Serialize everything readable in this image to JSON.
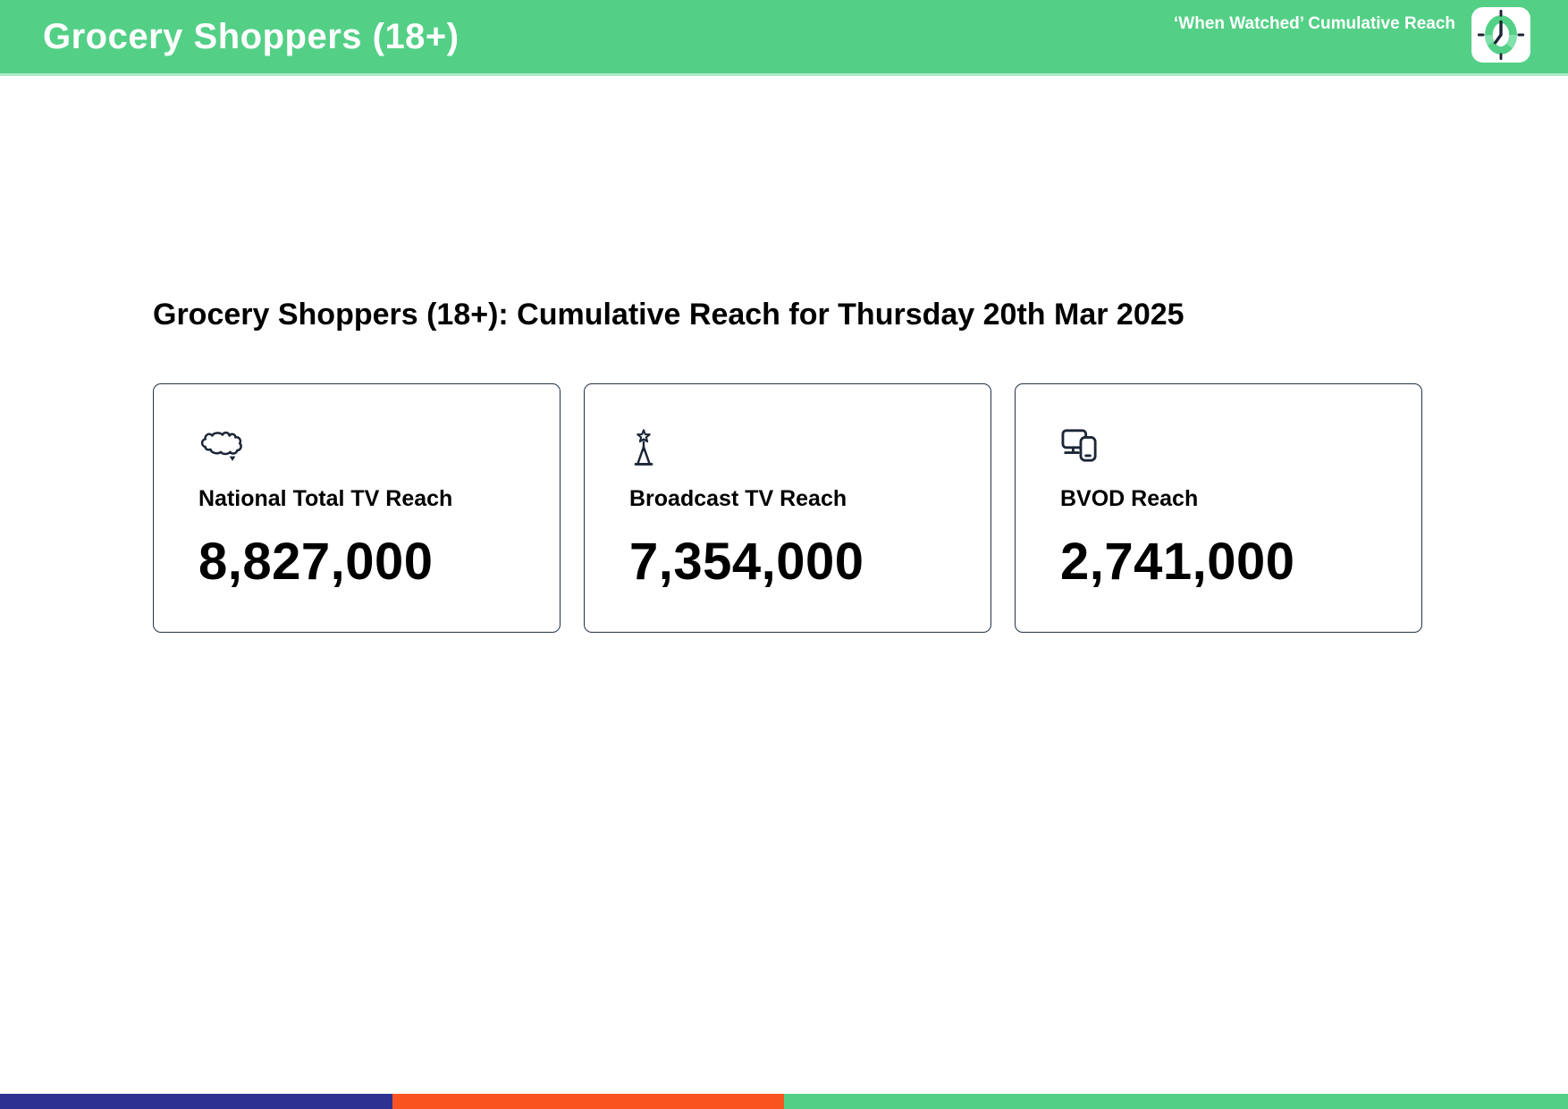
{
  "header": {
    "title": "Grocery Shoppers (18+)",
    "tagline": "‘When Watched’ Cumulative Reach"
  },
  "main": {
    "heading": "Grocery Shoppers (18+): Cumulative Reach for Thursday 20th Mar 2025",
    "cards": [
      {
        "icon": "australia-map-icon",
        "label": "National Total TV Reach",
        "value": "8,827,000"
      },
      {
        "icon": "broadcast-tower-icon",
        "label": "Broadcast TV Reach",
        "value": "7,354,000"
      },
      {
        "icon": "tv-and-phone-icon",
        "label": "BVOD Reach",
        "value": "2,741,000"
      }
    ]
  },
  "footer": {
    "segments": [
      {
        "name": "navy",
        "color": "#2e3192",
        "width_pct": 25
      },
      {
        "name": "orange",
        "color": "#f95420",
        "width_pct": 25
      },
      {
        "name": "green",
        "color": "#53d086",
        "width_pct": 50
      }
    ]
  },
  "colors": {
    "header_background": "#53d086",
    "header_text": "#ffffff",
    "icon": "#1d2637",
    "card_border": "#24324a",
    "body_text": "#000000"
  }
}
